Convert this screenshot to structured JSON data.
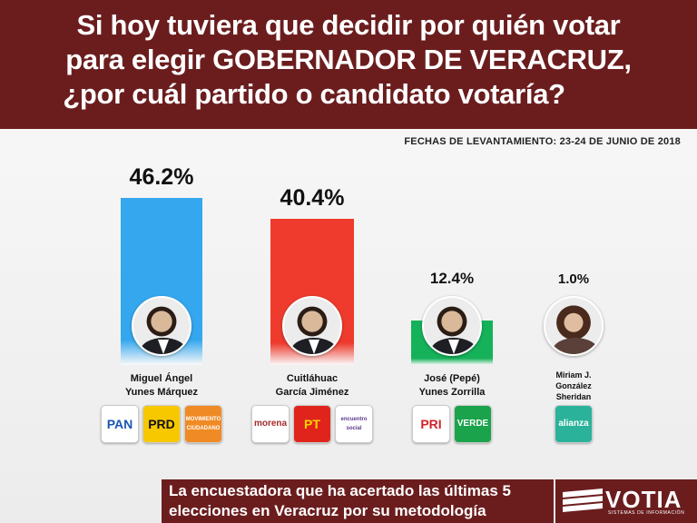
{
  "header": {
    "line1": "Si hoy tuviera que decidir por quién votar",
    "line2": "para elegir GOBERNADOR DE VERACRUZ,",
    "line3": "¿por cuál partido o candidato votaría?"
  },
  "fieldwork_label": "FECHAS DE LEVANTAMIENTO: 23-24 DE JUNIO DE 2018",
  "chart_data": {
    "type": "bar",
    "categories": [
      "Miguel Ángel Yunes Márquez",
      "Cuitláhuac García Jiménez",
      "José (Pepé) Yunes Zorrilla",
      "Miriam J. González Sheridan"
    ],
    "values": [
      46.2,
      40.4,
      12.4,
      1.0
    ],
    "value_labels": [
      "46.2%",
      "40.4%",
      "12.4%",
      "1.0%"
    ],
    "colors": [
      "#35a7ee",
      "#ee3b2d",
      "#16b25a",
      "#3cb8a4"
    ],
    "ylim": [
      0,
      46.2
    ],
    "grid": false,
    "title": "",
    "xlabel": "",
    "ylabel": ""
  },
  "candidates": [
    {
      "name_line1": "Miguel Ángel",
      "name_line2": "Yunes Márquez",
      "name_line3": ""
    },
    {
      "name_line1": "Cuitláhuac",
      "name_line2": "García Jiménez",
      "name_line3": ""
    },
    {
      "name_line1": "José (Pepé)",
      "name_line2": "Yunes Zorrilla",
      "name_line3": ""
    },
    {
      "name_line1": "Miriam J.",
      "name_line2": "González",
      "name_line3": "Sheridan"
    }
  ],
  "party_logos": [
    [
      {
        "icon": "pan-logo",
        "text": "PAN",
        "bg": "#ffffff",
        "fg": "#1a56b3"
      },
      {
        "icon": "prd-logo",
        "text": "PRD",
        "bg": "#f7c800",
        "fg": "#111111"
      },
      {
        "icon": "movimiento-ciudadano-logo",
        "text": "MOVIMIENTO CIUDADANO",
        "bg": "#f08a24",
        "fg": "#ffffff"
      }
    ],
    [
      {
        "icon": "morena-logo",
        "text": "morena",
        "bg": "#ffffff",
        "fg": "#a52a2a"
      },
      {
        "icon": "pt-logo",
        "text": "PT",
        "bg": "#e0241b",
        "fg": "#f7d400"
      },
      {
        "icon": "encuentro-social-logo",
        "text": "encuentro social",
        "bg": "#ffffff",
        "fg": "#5b3a8c"
      }
    ],
    [
      {
        "icon": "pri-logo",
        "text": "PRI",
        "bg": "#ffffff",
        "fg": "#d1232a"
      },
      {
        "icon": "verde-logo",
        "text": "VERDE",
        "bg": "#1aa34a",
        "fg": "#ffffff"
      }
    ],
    [
      {
        "icon": "nueva-alianza-logo",
        "text": "alianza",
        "bg": "#2ab39a",
        "fg": "#ffffff"
      }
    ]
  ],
  "footer": {
    "line1": "La encuestadora que ha acertado las últimas 5",
    "line2": "elecciones en Veracruz por su metodología",
    "brand": "VOTIA",
    "brand_sub": "SISTEMAS DE INFORMACIÓN"
  }
}
